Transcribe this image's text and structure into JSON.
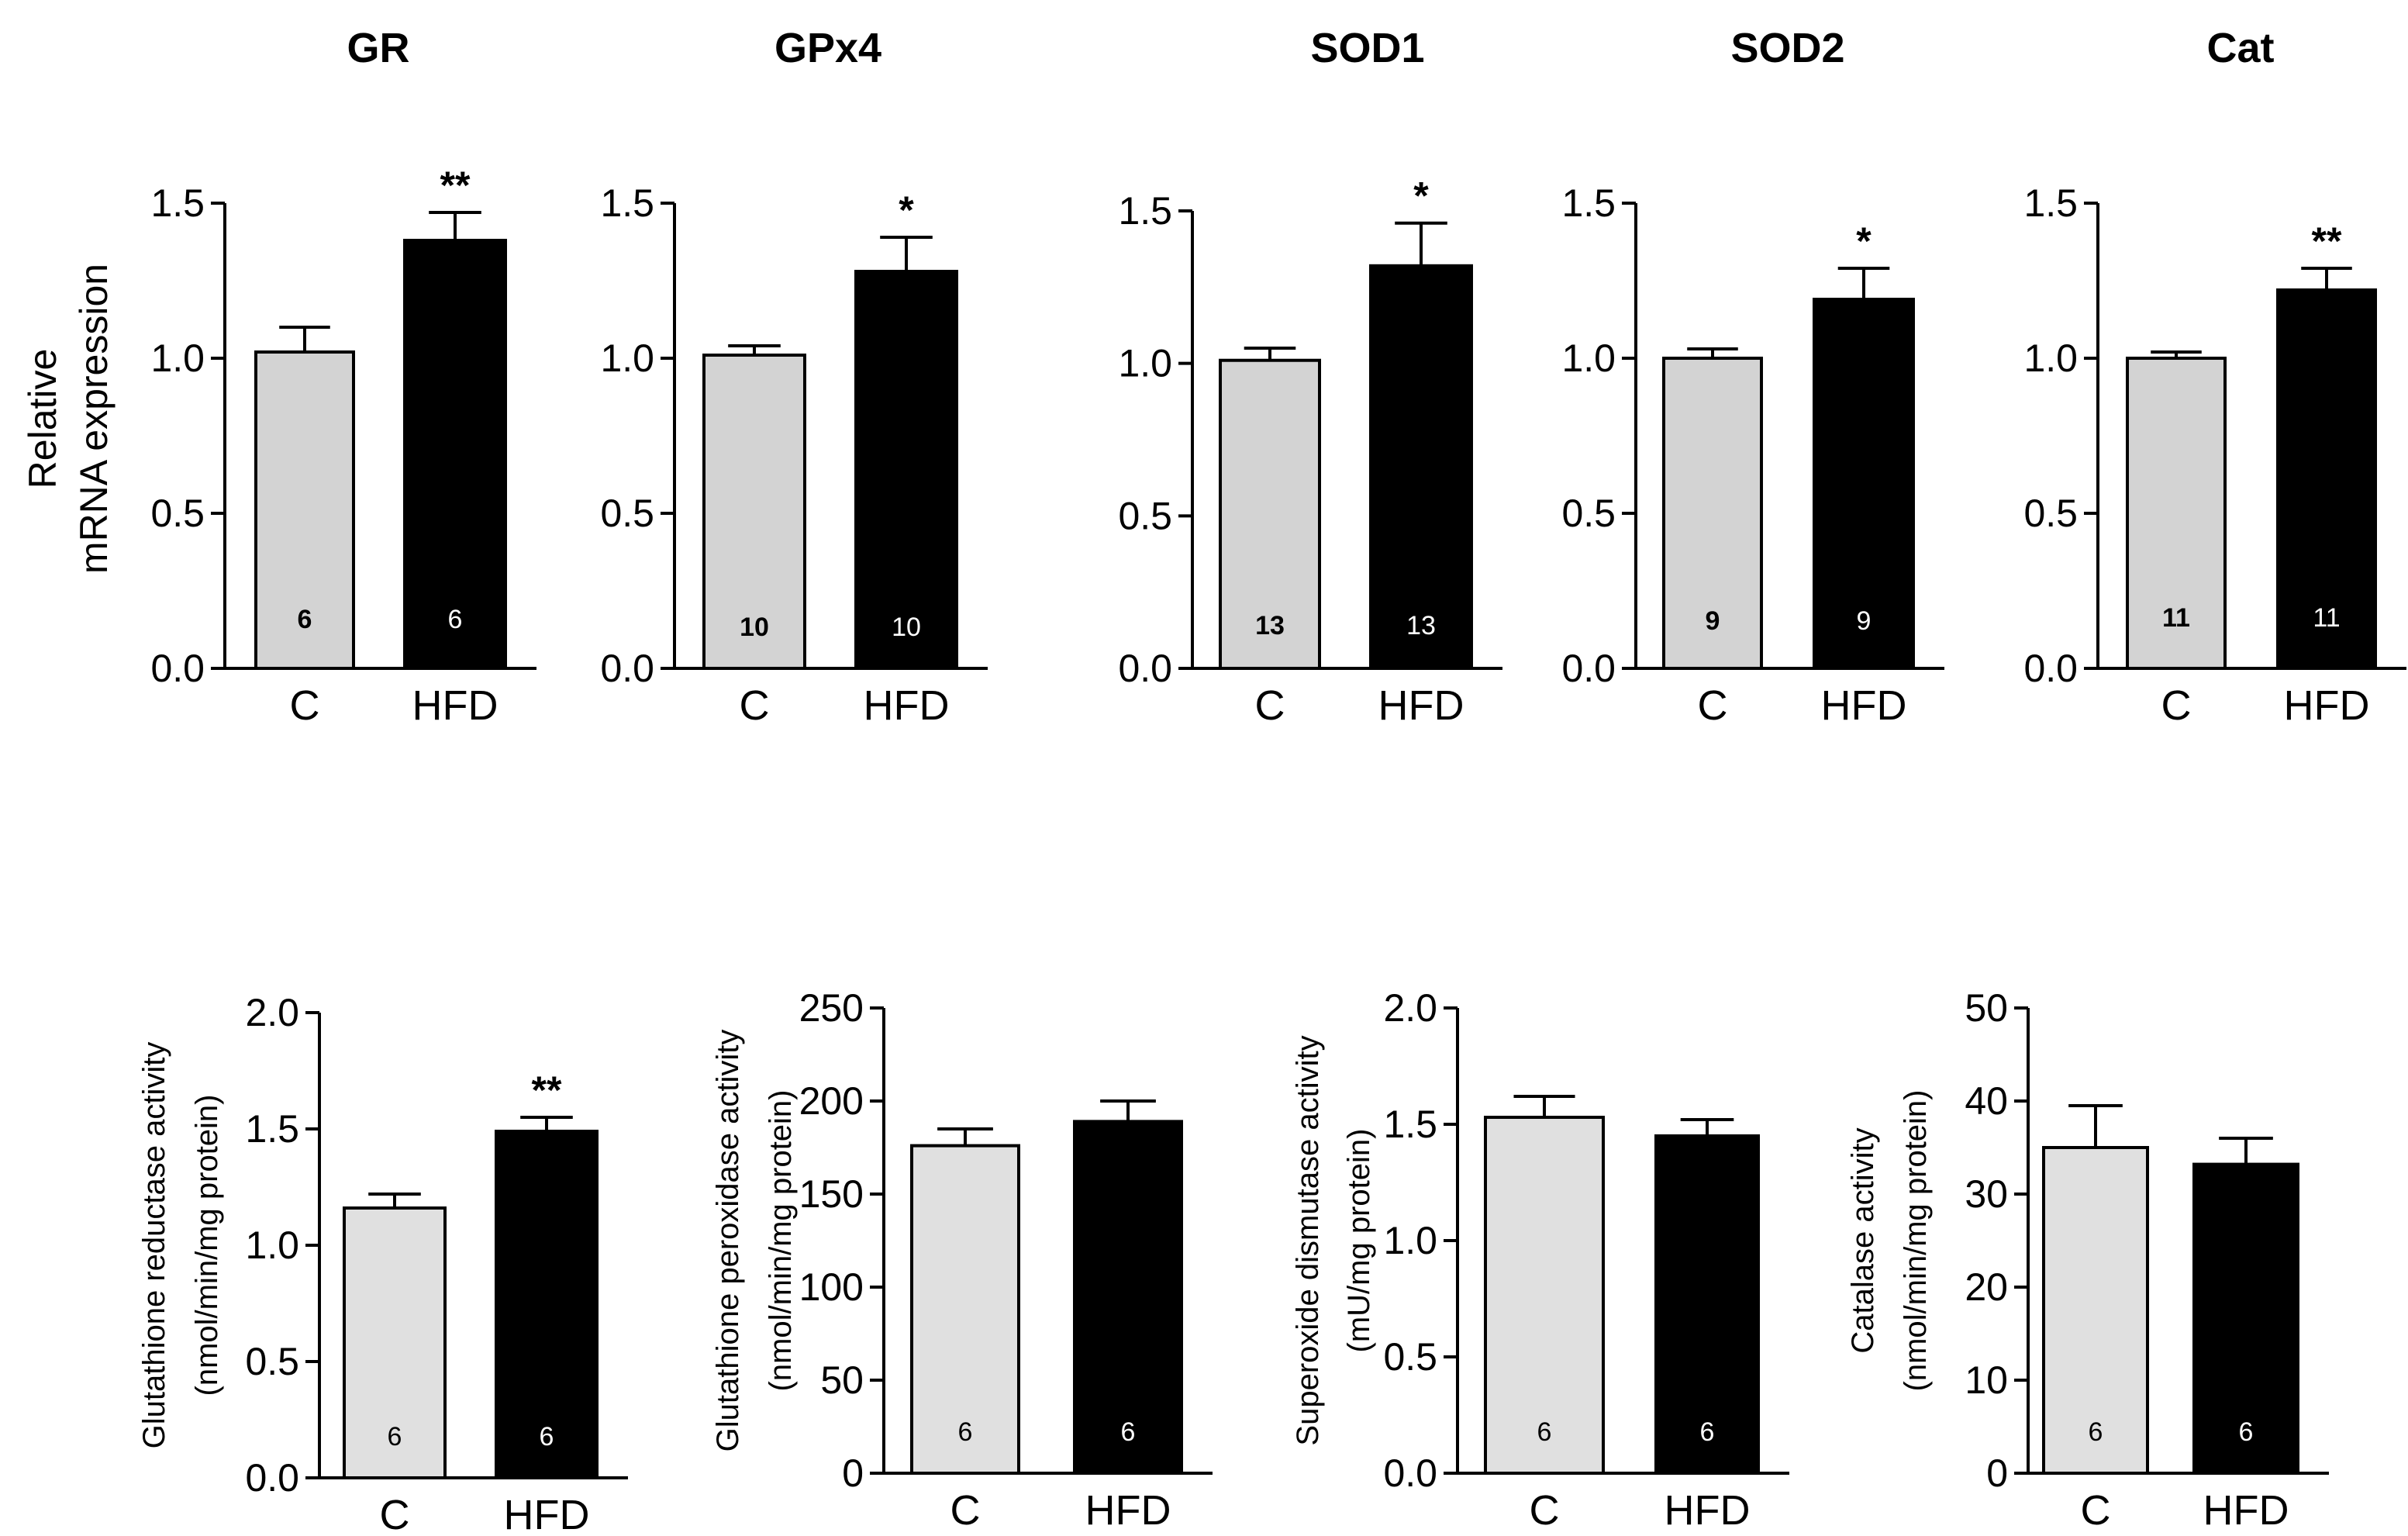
{
  "figure": {
    "panels_row1_ylabel": [
      "Relative",
      "mRNA expression"
    ]
  },
  "colors": {
    "control_bar": "#d3d3d3",
    "control_bar_light": "#e0e0e0",
    "hfd_bar": "#000000",
    "axis": "#000000"
  },
  "chart_data": [
    {
      "type": "bar",
      "title": "GR",
      "ylabel": "",
      "categories": [
        "C",
        "HFD"
      ],
      "values": [
        1.02,
        1.38
      ],
      "errors": [
        0.08,
        0.09
      ],
      "n_labels": [
        "6",
        "6"
      ],
      "significance": [
        "",
        "**"
      ],
      "ylim": [
        0,
        1.5
      ],
      "yticks": [
        0.0,
        0.5,
        1.0,
        1.5
      ],
      "ytick_labels": [
        "0.0",
        "0.5",
        "1.0",
        "1.5"
      ]
    },
    {
      "type": "bar",
      "title": "GPx4",
      "ylabel": "",
      "categories": [
        "C",
        "HFD"
      ],
      "values": [
        1.01,
        1.28
      ],
      "errors": [
        0.03,
        0.11
      ],
      "n_labels": [
        "10",
        "10"
      ],
      "significance": [
        "",
        "*"
      ],
      "ylim": [
        0,
        1.5
      ],
      "yticks": [
        0.0,
        0.5,
        1.0,
        1.5
      ],
      "ytick_labels": [
        "0.0",
        "0.5",
        "1.0",
        "1.5"
      ]
    },
    {
      "type": "bar",
      "title": "SOD1",
      "ylabel": "",
      "categories": [
        "C",
        "HFD"
      ],
      "values": [
        1.01,
        1.32
      ],
      "errors": [
        0.04,
        0.14
      ],
      "n_labels": [
        "13",
        "13"
      ],
      "significance": [
        "",
        "*"
      ],
      "ylim": [
        0,
        1.5
      ],
      "yticks": [
        0.0,
        0.5,
        1.0,
        1.5
      ],
      "ytick_labels": [
        "0.0",
        "0.5",
        "1.0",
        "1.5"
      ]
    },
    {
      "type": "bar",
      "title": "SOD2",
      "ylabel": "",
      "categories": [
        "C",
        "HFD"
      ],
      "values": [
        1.0,
        1.19
      ],
      "errors": [
        0.03,
        0.1
      ],
      "n_labels": [
        "9",
        "9"
      ],
      "significance": [
        "",
        "*"
      ],
      "ylim": [
        0,
        1.5
      ],
      "yticks": [
        0.0,
        0.5,
        1.0,
        1.5
      ],
      "ytick_labels": [
        "0.0",
        "0.5",
        "1.0",
        "1.5"
      ]
    },
    {
      "type": "bar",
      "title": "Cat",
      "ylabel": "",
      "categories": [
        "C",
        "HFD"
      ],
      "values": [
        1.0,
        1.22
      ],
      "errors": [
        0.02,
        0.07
      ],
      "n_labels": [
        "11",
        "11"
      ],
      "significance": [
        "",
        "**"
      ],
      "ylim": [
        0,
        1.5
      ],
      "yticks": [
        0.0,
        0.5,
        1.0,
        1.5
      ],
      "ytick_labels": [
        "0.0",
        "0.5",
        "1.0",
        "1.5"
      ]
    },
    {
      "type": "bar",
      "title": "",
      "ylabel": [
        "Glutathione reductase activity",
        "(nmol/min/mg protein)"
      ],
      "categories": [
        "C",
        "HFD"
      ],
      "values": [
        1.16,
        1.49
      ],
      "errors": [
        0.06,
        0.06
      ],
      "n_labels": [
        "6",
        "6"
      ],
      "significance": [
        "",
        "**"
      ],
      "ylim": [
        0,
        2.0
      ],
      "yticks": [
        0.0,
        0.5,
        1.0,
        1.5,
        2.0
      ],
      "ytick_labels": [
        "0.0",
        "0.5",
        "1.0",
        "1.5",
        "2.0"
      ]
    },
    {
      "type": "bar",
      "title": "",
      "ylabel": [
        "Glutathione peroxidase activity",
        "(nmol/min/mg protein)"
      ],
      "categories": [
        "C",
        "HFD"
      ],
      "values": [
        176,
        189
      ],
      "errors": [
        9,
        11
      ],
      "n_labels": [
        "6",
        "6"
      ],
      "significance": [
        "",
        ""
      ],
      "ylim": [
        0,
        250
      ],
      "yticks": [
        0,
        50,
        100,
        150,
        200,
        250
      ],
      "ytick_labels": [
        "0",
        "50",
        "100",
        "150",
        "200",
        "250"
      ]
    },
    {
      "type": "bar",
      "title": "",
      "ylabel": [
        "Superoxide dismutase activity",
        "(mU/mg protein)"
      ],
      "categories": [
        "C",
        "HFD"
      ],
      "values": [
        1.53,
        1.45
      ],
      "errors": [
        0.09,
        0.07
      ],
      "n_labels": [
        "6",
        "6"
      ],
      "significance": [
        "",
        ""
      ],
      "ylim": [
        0,
        2.0
      ],
      "yticks": [
        0.0,
        0.5,
        1.0,
        1.5,
        2.0
      ],
      "ytick_labels": [
        "0.0",
        "0.5",
        "1.0",
        "1.5",
        "2.0"
      ]
    },
    {
      "type": "bar",
      "title": "",
      "ylabel": [
        "Catalase activity",
        "(nmol/min/mg protein)"
      ],
      "categories": [
        "C",
        "HFD"
      ],
      "values": [
        35.0,
        33.2
      ],
      "errors": [
        4.5,
        2.8
      ],
      "n_labels": [
        "6",
        "6"
      ],
      "significance": [
        "",
        ""
      ],
      "ylim": [
        0,
        50
      ],
      "yticks": [
        0,
        10,
        20,
        30,
        40,
        50
      ],
      "ytick_labels": [
        "0",
        "10",
        "20",
        "30",
        "40",
        "50"
      ]
    }
  ]
}
